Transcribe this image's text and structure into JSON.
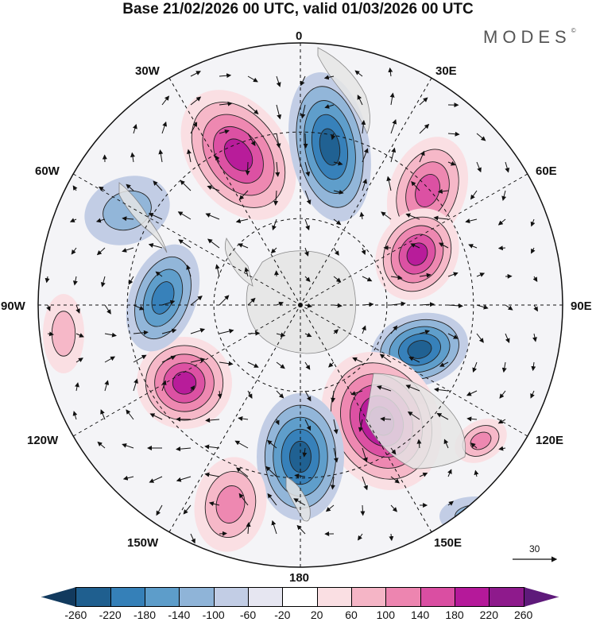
{
  "title": "Base 21/02/2026 00 UTC, valid 01/03/2026 00 UTC",
  "brand": "MODES",
  "brand_mark": "©",
  "longitude_labels": {
    "top": "0",
    "e30": "30E",
    "e60": "60E",
    "e90": "90E",
    "e120": "120E",
    "e150": "150E",
    "bottom": "180",
    "w150": "150W",
    "w120": "120W",
    "w90": "90W",
    "w60": "60W",
    "w30": "30W"
  },
  "reference_vector": "30",
  "colorbar": {
    "ticks": [
      "-260",
      "-220",
      "-180",
      "-140",
      "-100",
      "-60",
      "-20",
      "20",
      "60",
      "100",
      "140",
      "180",
      "220",
      "260"
    ],
    "colors": [
      "#123a5e",
      "#1f5f8f",
      "#3580b8",
      "#5d9dca",
      "#8fb4d8",
      "#c2cde5",
      "#e6e6f1",
      "#ffffff",
      "#fadfe3",
      "#f5b5c6",
      "#ed85b0",
      "#da4ea2",
      "#b5199a",
      "#8e1a8c",
      "#5e1a7a"
    ]
  },
  "anomalies": [
    {
      "sign": "positive",
      "level": 4
    },
    {
      "sign": "negative",
      "level": 4
    },
    {
      "sign": "positive",
      "level": 3
    },
    {
      "sign": "positive",
      "level": 4
    },
    {
      "sign": "negative",
      "level": 4
    },
    {
      "sign": "positive",
      "level": 5
    },
    {
      "sign": "negative",
      "level": 4
    },
    {
      "sign": "positive",
      "level": 2
    },
    {
      "sign": "positive",
      "level": 4
    },
    {
      "sign": "negative",
      "level": 3
    },
    {
      "sign": "negative",
      "level": 1
    },
    {
      "sign": "positive",
      "level": 1
    },
    {
      "sign": "negative",
      "level": 1
    },
    {
      "sign": "positive",
      "level": 2
    }
  ]
}
